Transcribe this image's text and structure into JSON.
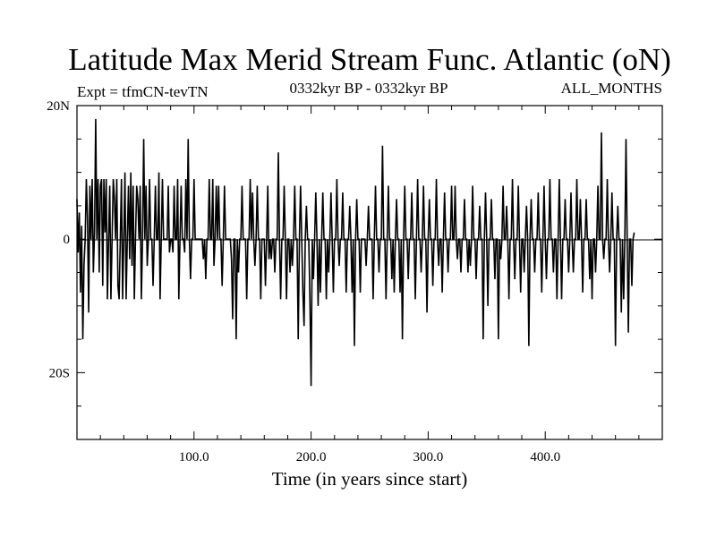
{
  "chart_data": {
    "type": "line",
    "title": "Latitude Max Merid Stream Func. Atlantic (oN)",
    "subtitle_left": "Expt = tfmCN-tevTN",
    "subtitle_center": "0332kyr BP - 0332kyr BP",
    "subtitle_right": "ALL_MONTHS",
    "xlabel": "Time (in years since start)",
    "ylabel": "",
    "xlim": [
      0,
      500
    ],
    "ylim": [
      -30,
      20
    ],
    "x_ticks": [
      {
        "value": 100,
        "label": "100.0"
      },
      {
        "value": 200,
        "label": "200.0"
      },
      {
        "value": 300,
        "label": "300.0"
      },
      {
        "value": 400,
        "label": "400.0"
      }
    ],
    "y_ticks": [
      {
        "value": 20,
        "label": "20N"
      },
      {
        "value": 0,
        "label": "0"
      },
      {
        "value": -20,
        "label": "20S"
      }
    ],
    "grid": false,
    "series": [
      {
        "x_start": 0,
        "x_step": 1,
        "values": [
          6,
          -2,
          4,
          -8,
          2,
          -15,
          -4,
          0,
          9,
          3,
          -11,
          8,
          0,
          9,
          -5,
          1,
          18,
          0,
          9,
          -5,
          8,
          9,
          -7,
          9,
          1,
          9,
          -9,
          0,
          8,
          -9,
          0,
          9,
          6,
          0,
          9,
          -7,
          -9,
          0,
          9,
          -9,
          0,
          10,
          -9,
          0,
          8,
          -3,
          10,
          -4,
          8,
          -9,
          0,
          8,
          6,
          0,
          8,
          -9,
          0,
          15,
          0,
          8,
          -4,
          0,
          9,
          0,
          0,
          -7,
          0,
          8,
          0,
          0,
          10,
          -9,
          0,
          9,
          0,
          0,
          0,
          0,
          8,
          -2,
          0,
          0,
          -2,
          8,
          0,
          0,
          9,
          -9,
          0,
          8,
          0,
          0,
          -2,
          9,
          0,
          15,
          0,
          -6,
          0,
          0,
          9,
          0,
          0,
          0,
          0,
          0,
          0,
          0,
          -3,
          0,
          -6,
          0,
          0,
          9,
          0,
          0,
          9,
          -4,
          0,
          8,
          0,
          8,
          0,
          0,
          -7,
          0,
          8,
          0,
          0,
          0,
          0,
          0,
          -3,
          -12,
          0,
          0,
          -15,
          0,
          -5,
          0,
          0,
          8,
          0,
          0,
          0,
          -9,
          0,
          0,
          9,
          0,
          7,
          0,
          -4,
          0,
          8,
          0,
          0,
          -9,
          0,
          0,
          0,
          -7,
          0,
          8,
          -3,
          0,
          -3,
          0,
          0,
          -5,
          0,
          0,
          13,
          0,
          -9,
          0,
          0,
          8,
          0,
          -9,
          0,
          0,
          -5,
          0,
          -4,
          0,
          8,
          0,
          0,
          -15,
          0,
          8,
          0,
          -8,
          -13,
          0,
          5,
          0,
          0,
          -9,
          -22,
          0,
          -6,
          0,
          7,
          0,
          -10,
          0,
          -8,
          0,
          7,
          0,
          0,
          -9,
          0,
          -5,
          0,
          7,
          0,
          -8,
          0,
          0,
          9,
          0,
          -4,
          0,
          0,
          7,
          0,
          0,
          -8,
          0,
          0,
          5,
          0,
          -8,
          0,
          -16,
          0,
          6,
          0,
          0,
          -8,
          0,
          0,
          0,
          0,
          -4,
          0,
          5,
          0,
          0,
          0,
          -9,
          0,
          8,
          0,
          0,
          -5,
          0,
          0,
          14,
          0,
          0,
          -9,
          0,
          8,
          0,
          0,
          -6,
          0,
          -8,
          0,
          6,
          0,
          0,
          -8,
          0,
          -15,
          0,
          8,
          0,
          0,
          -6,
          0,
          0,
          7,
          0,
          0,
          -9,
          0,
          9,
          0,
          0,
          -5,
          0,
          8,
          0,
          0,
          -11,
          0,
          6,
          0,
          0,
          -7,
          0,
          0,
          9,
          0,
          -4,
          0,
          0,
          -8,
          0,
          7,
          0,
          0,
          -5,
          0,
          0,
          8,
          0,
          0,
          8,
          0,
          -3,
          0,
          0,
          -5,
          0,
          0,
          6,
          0,
          0,
          -5,
          0,
          -4,
          0,
          8,
          0,
          0,
          -6,
          0,
          0,
          5,
          0,
          0,
          -15,
          0,
          7,
          0,
          -10,
          0,
          0,
          6,
          0,
          0,
          -6,
          0,
          0,
          -15,
          0,
          -3,
          0,
          8,
          0,
          0,
          5,
          0,
          -9,
          0,
          0,
          9,
          0,
          -6,
          0,
          0,
          8,
          0,
          -8,
          0,
          0,
          -5,
          0,
          5,
          0,
          -16,
          0,
          6,
          0,
          0,
          -5,
          0,
          0,
          7,
          0,
          0,
          -8,
          0,
          8,
          0,
          -6,
          0,
          0,
          9,
          0,
          0,
          -5,
          0,
          0,
          -9,
          0,
          9,
          0,
          -9,
          0,
          0,
          6,
          0,
          0,
          -5,
          0,
          7,
          0,
          -5,
          0,
          0,
          9,
          0,
          0,
          6,
          0,
          -8,
          0,
          0,
          6,
          0,
          0,
          -6,
          0,
          -9,
          0,
          0,
          -5,
          0,
          8,
          0,
          0,
          16,
          0,
          -3,
          0,
          0,
          9,
          0,
          -5,
          0,
          7,
          0,
          0,
          -16,
          0,
          5,
          0,
          0,
          -11,
          0,
          -9,
          0,
          15,
          0,
          -14,
          0,
          0,
          -7,
          0,
          1
        ]
      }
    ]
  }
}
